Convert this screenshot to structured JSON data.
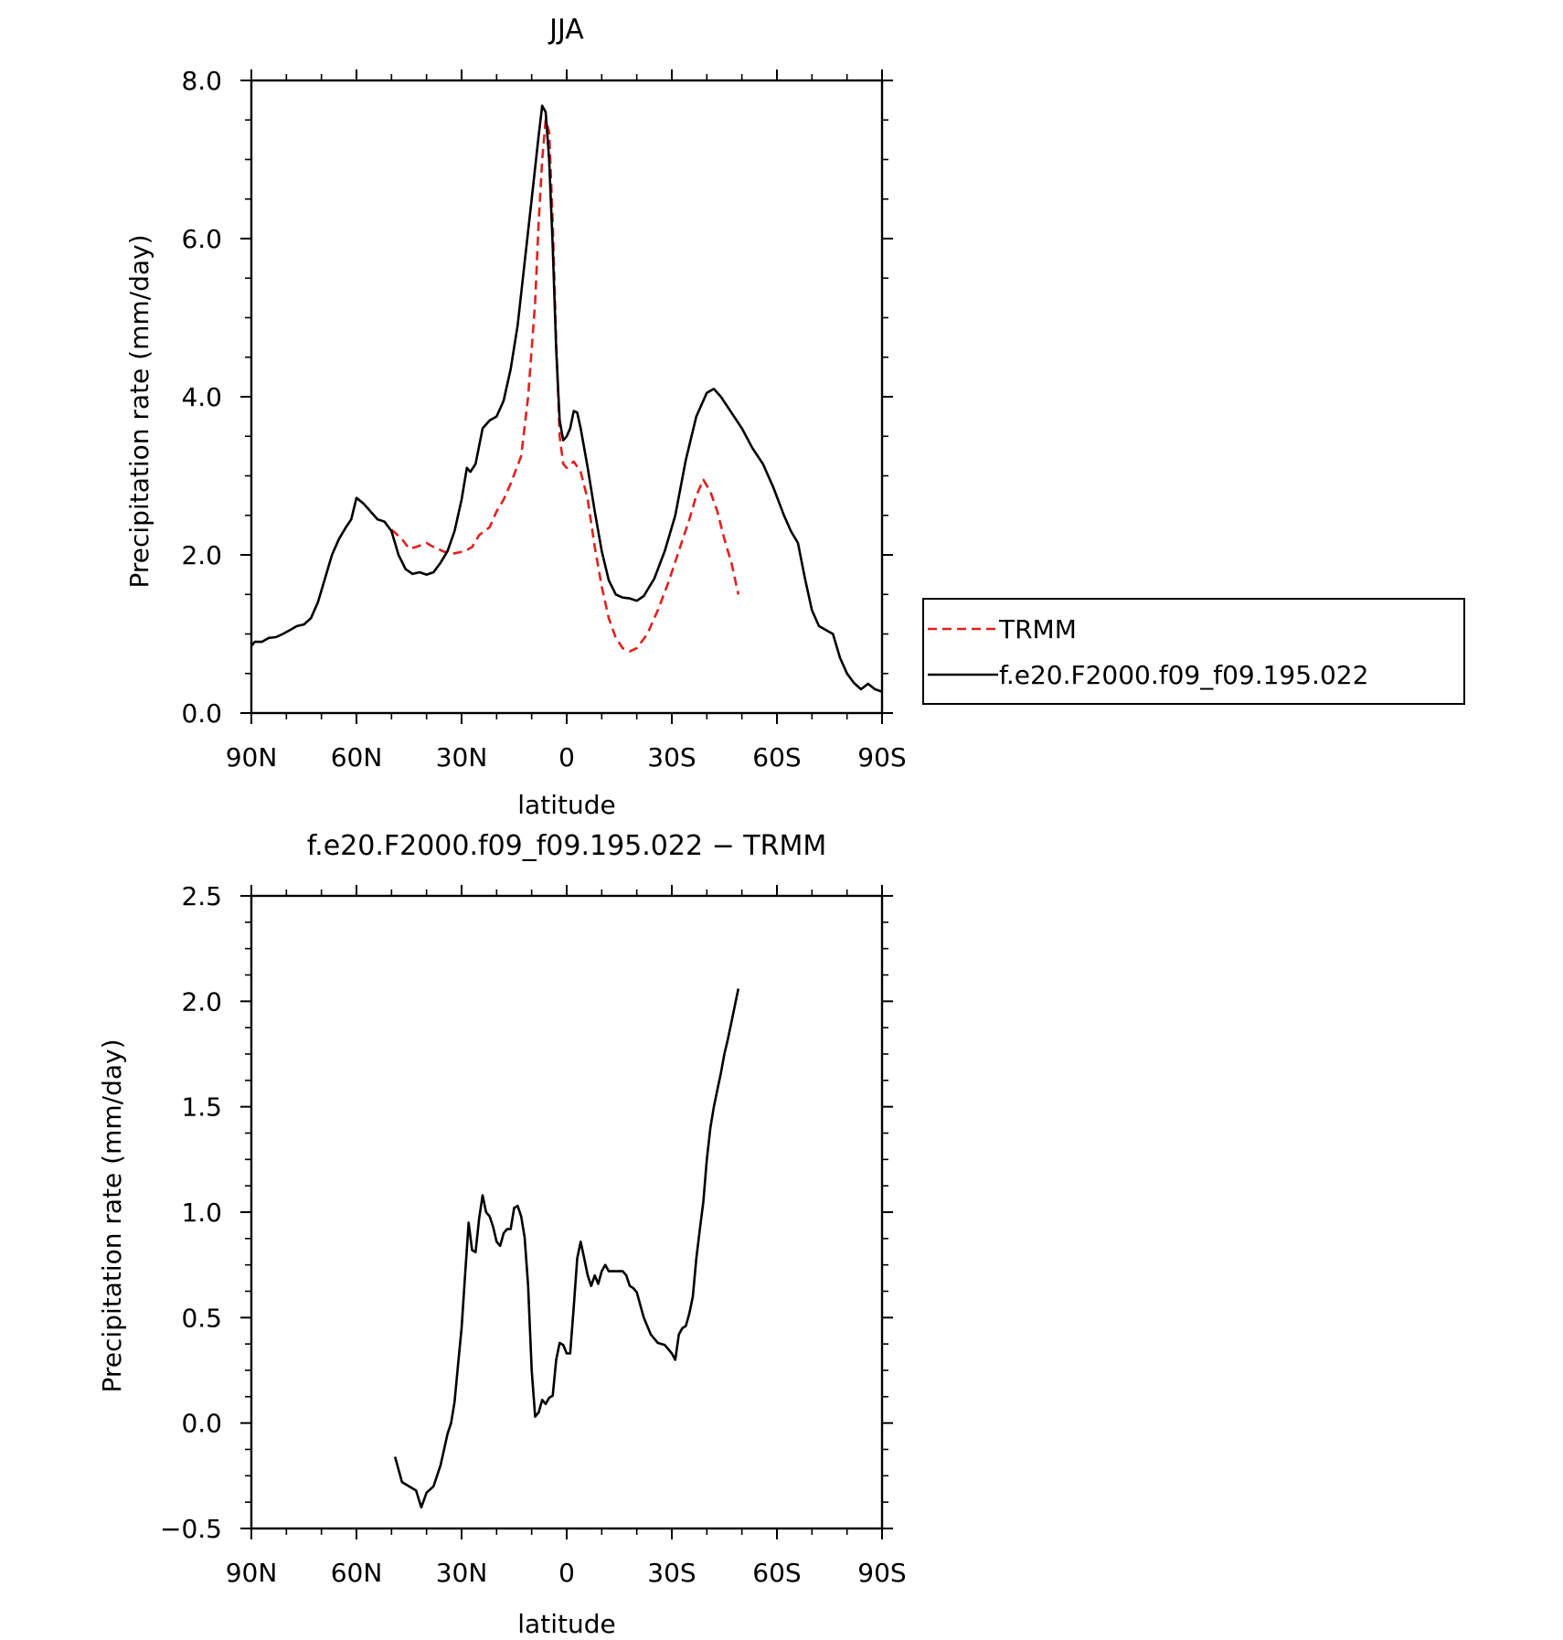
{
  "chart_data": [
    {
      "type": "line",
      "title": "JJA",
      "xlabel": "latitude",
      "ylabel": "Precipitation rate (mm/day)",
      "x_ticks": [
        "90N",
        "60N",
        "30N",
        "0",
        "30S",
        "60S",
        "90S"
      ],
      "y_ticks": [
        "0.0",
        "2.0",
        "4.0",
        "6.0",
        "8.0"
      ],
      "xlim": [
        90,
        -90
      ],
      "ylim": [
        0,
        8
      ],
      "legend": [
        "TRMM",
        "f.e20.F2000.f09_f09.195.022"
      ],
      "legend_position": "right",
      "series": [
        {
          "name": "TRMM",
          "color": "#e02020",
          "style": "dashed",
          "points": [
            [
              50,
              2.32
            ],
            [
              47,
              2.2
            ],
            [
              45,
              2.08
            ],
            [
              43,
              2.1
            ],
            [
              40,
              2.15
            ],
            [
              38,
              2.1
            ],
            [
              35,
              2.04
            ],
            [
              32,
              2.02
            ],
            [
              29,
              2.05
            ],
            [
              27,
              2.1
            ],
            [
              25,
              2.25
            ],
            [
              22,
              2.35
            ],
            [
              20,
              2.55
            ],
            [
              18,
              2.7
            ],
            [
              16,
              2.9
            ],
            [
              13,
              3.25
            ],
            [
              11,
              4.0
            ],
            [
              9,
              5.2
            ],
            [
              8,
              6.2
            ],
            [
              7,
              7.0
            ],
            [
              6,
              7.5
            ],
            [
              5,
              7.35
            ],
            [
              4,
              6.2
            ],
            [
              3,
              4.7
            ],
            [
              2,
              3.5
            ],
            [
              1,
              3.15
            ],
            [
              0,
              3.1
            ],
            [
              -2,
              3.18
            ],
            [
              -4,
              3.05
            ],
            [
              -6,
              2.7
            ],
            [
              -8,
              2.1
            ],
            [
              -10,
              1.6
            ],
            [
              -12,
              1.2
            ],
            [
              -14,
              0.95
            ],
            [
              -16,
              0.82
            ],
            [
              -18,
              0.78
            ],
            [
              -20,
              0.82
            ],
            [
              -23,
              1.0
            ],
            [
              -26,
              1.3
            ],
            [
              -29,
              1.65
            ],
            [
              -32,
              2.05
            ],
            [
              -35,
              2.45
            ],
            [
              -37,
              2.75
            ],
            [
              -39,
              2.95
            ],
            [
              -41,
              2.8
            ],
            [
              -43,
              2.55
            ],
            [
              -45,
              2.2
            ],
            [
              -47,
              1.9
            ],
            [
              -49,
              1.5
            ]
          ]
        },
        {
          "name": "f.e20.F2000.f09_f09.195.022",
          "color": "#000000",
          "style": "solid",
          "points": [
            [
              90,
              0.85
            ],
            [
              89,
              0.9
            ],
            [
              87,
              0.9
            ],
            [
              85,
              0.95
            ],
            [
              83,
              0.96
            ],
            [
              81,
              1.0
            ],
            [
              79,
              1.05
            ],
            [
              77,
              1.1
            ],
            [
              75,
              1.12
            ],
            [
              73,
              1.2
            ],
            [
              71,
              1.4
            ],
            [
              69,
              1.7
            ],
            [
              67,
              2.0
            ],
            [
              65,
              2.2
            ],
            [
              63,
              2.35
            ],
            [
              61.5,
              2.45
            ],
            [
              60,
              2.72
            ],
            [
              58,
              2.65
            ],
            [
              56,
              2.55
            ],
            [
              54,
              2.45
            ],
            [
              52,
              2.42
            ],
            [
              50,
              2.3
            ],
            [
              48,
              2.0
            ],
            [
              46,
              1.82
            ],
            [
              44,
              1.76
            ],
            [
              42,
              1.78
            ],
            [
              40,
              1.75
            ],
            [
              38,
              1.78
            ],
            [
              36,
              1.9
            ],
            [
              34,
              2.05
            ],
            [
              32,
              2.3
            ],
            [
              30,
              2.7
            ],
            [
              28.5,
              3.1
            ],
            [
              27.5,
              3.05
            ],
            [
              26,
              3.15
            ],
            [
              24,
              3.6
            ],
            [
              22,
              3.7
            ],
            [
              20,
              3.75
            ],
            [
              18,
              3.95
            ],
            [
              16,
              4.35
            ],
            [
              14,
              4.9
            ],
            [
              12,
              5.7
            ],
            [
              10,
              6.5
            ],
            [
              8,
              7.3
            ],
            [
              7,
              7.68
            ],
            [
              6,
              7.6
            ],
            [
              5,
              7.0
            ],
            [
              4,
              5.9
            ],
            [
              3,
              4.6
            ],
            [
              2,
              3.7
            ],
            [
              1,
              3.45
            ],
            [
              0,
              3.5
            ],
            [
              -1,
              3.6
            ],
            [
              -2,
              3.82
            ],
            [
              -3,
              3.8
            ],
            [
              -4,
              3.6
            ],
            [
              -6,
              3.1
            ],
            [
              -8,
              2.55
            ],
            [
              -10,
              2.05
            ],
            [
              -12,
              1.68
            ],
            [
              -14,
              1.5
            ],
            [
              -16,
              1.46
            ],
            [
              -18,
              1.45
            ],
            [
              -20,
              1.42
            ],
            [
              -22,
              1.48
            ],
            [
              -25,
              1.7
            ],
            [
              -28,
              2.05
            ],
            [
              -31,
              2.5
            ],
            [
              -34,
              3.2
            ],
            [
              -37,
              3.75
            ],
            [
              -40,
              4.05
            ],
            [
              -42,
              4.1
            ],
            [
              -44,
              4.0
            ],
            [
              -47,
              3.8
            ],
            [
              -50,
              3.6
            ],
            [
              -53,
              3.35
            ],
            [
              -56,
              3.15
            ],
            [
              -59,
              2.85
            ],
            [
              -62,
              2.5
            ],
            [
              -64,
              2.3
            ],
            [
              -66,
              2.15
            ],
            [
              -68,
              1.7
            ],
            [
              -70,
              1.3
            ],
            [
              -72,
              1.1
            ],
            [
              -74,
              1.05
            ],
            [
              -76,
              1.0
            ],
            [
              -78,
              0.7
            ],
            [
              -80,
              0.5
            ],
            [
              -82,
              0.38
            ],
            [
              -84,
              0.3
            ],
            [
              -86,
              0.37
            ],
            [
              -88,
              0.3
            ],
            [
              -90,
              0.27
            ]
          ]
        }
      ]
    },
    {
      "type": "line",
      "title": "f.e20.F2000.f09_f09.195.022 − TRMM",
      "xlabel": "latitude",
      "ylabel": "Precipitation rate (mm/day)",
      "x_ticks": [
        "90N",
        "60N",
        "30N",
        "0",
        "30S",
        "60S",
        "90S"
      ],
      "y_ticks": [
        "−0.5",
        "0.0",
        "0.5",
        "1.0",
        "1.5",
        "2.0",
        "2.5"
      ],
      "xlim": [
        90,
        -90
      ],
      "ylim": [
        -0.5,
        2.5
      ],
      "series": [
        {
          "color": "#000000",
          "style": "solid",
          "points": [
            [
              49,
              -0.16
            ],
            [
              47,
              -0.28
            ],
            [
              45,
              -0.3
            ],
            [
              43,
              -0.32
            ],
            [
              41.5,
              -0.4
            ],
            [
              40,
              -0.33
            ],
            [
              38,
              -0.3
            ],
            [
              36,
              -0.2
            ],
            [
              34,
              -0.05
            ],
            [
              33,
              0.0
            ],
            [
              32,
              0.1
            ],
            [
              31,
              0.28
            ],
            [
              30,
              0.45
            ],
            [
              29,
              0.7
            ],
            [
              28,
              0.95
            ],
            [
              27,
              0.82
            ],
            [
              26,
              0.81
            ],
            [
              25,
              0.97
            ],
            [
              24,
              1.08
            ],
            [
              23,
              1.0
            ],
            [
              22,
              0.98
            ],
            [
              21,
              0.93
            ],
            [
              20,
              0.86
            ],
            [
              19,
              0.84
            ],
            [
              18,
              0.9
            ],
            [
              17,
              0.92
            ],
            [
              16,
              0.92
            ],
            [
              15,
              1.02
            ],
            [
              14,
              1.03
            ],
            [
              13,
              0.98
            ],
            [
              12,
              0.88
            ],
            [
              11,
              0.65
            ],
            [
              10,
              0.25
            ],
            [
              9,
              0.03
            ],
            [
              8,
              0.05
            ],
            [
              7,
              0.11
            ],
            [
              6,
              0.09
            ],
            [
              5,
              0.12
            ],
            [
              4,
              0.13
            ],
            [
              3,
              0.3
            ],
            [
              2,
              0.38
            ],
            [
              1,
              0.37
            ],
            [
              0,
              0.33
            ],
            [
              -1,
              0.33
            ],
            [
              -2,
              0.55
            ],
            [
              -3,
              0.78
            ],
            [
              -4,
              0.86
            ],
            [
              -5,
              0.78
            ],
            [
              -6,
              0.7
            ],
            [
              -7,
              0.65
            ],
            [
              -8,
              0.7
            ],
            [
              -9,
              0.66
            ],
            [
              -10,
              0.72
            ],
            [
              -11,
              0.75
            ],
            [
              -12,
              0.72
            ],
            [
              -14,
              0.72
            ],
            [
              -16,
              0.72
            ],
            [
              -17,
              0.7
            ],
            [
              -18,
              0.65
            ],
            [
              -19,
              0.64
            ],
            [
              -20,
              0.62
            ],
            [
              -22,
              0.5
            ],
            [
              -24,
              0.42
            ],
            [
              -26,
              0.38
            ],
            [
              -28,
              0.37
            ],
            [
              -30,
              0.33
            ],
            [
              -31,
              0.3
            ],
            [
              -32,
              0.42
            ],
            [
              -33,
              0.45
            ],
            [
              -34,
              0.46
            ],
            [
              -35,
              0.52
            ],
            [
              -36,
              0.6
            ],
            [
              -37,
              0.78
            ],
            [
              -38,
              0.92
            ],
            [
              -39,
              1.05
            ],
            [
              -40,
              1.25
            ],
            [
              -41,
              1.4
            ],
            [
              -42,
              1.5
            ],
            [
              -43,
              1.58
            ],
            [
              -44,
              1.66
            ],
            [
              -45,
              1.75
            ],
            [
              -46,
              1.82
            ],
            [
              -47,
              1.9
            ],
            [
              -48,
              1.98
            ],
            [
              -49,
              2.06
            ]
          ]
        }
      ]
    }
  ]
}
